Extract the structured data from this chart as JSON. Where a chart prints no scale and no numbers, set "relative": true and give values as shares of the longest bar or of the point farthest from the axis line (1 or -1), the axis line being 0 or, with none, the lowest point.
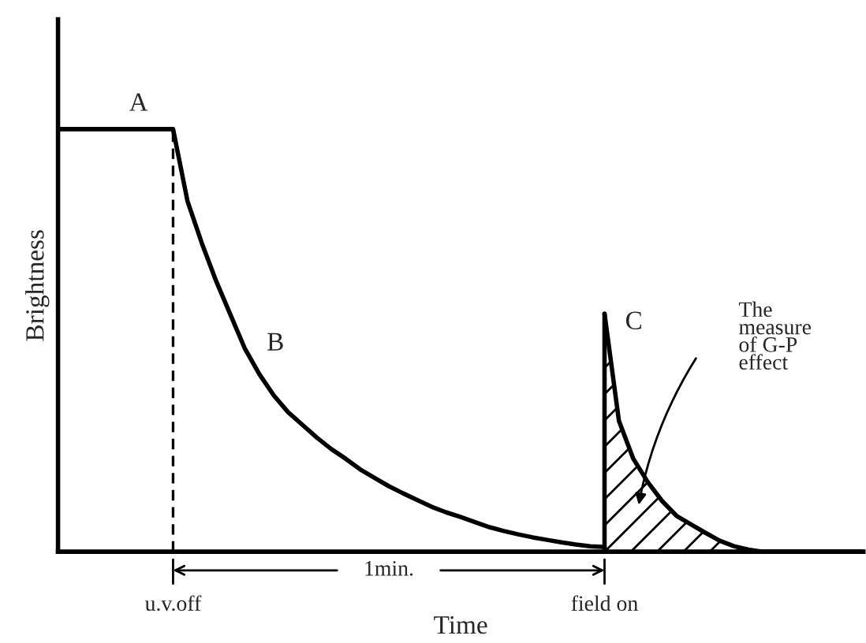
{
  "chart_data": {
    "type": "line",
    "relative": true,
    "xlabel": "Time",
    "ylabel": "Brightness",
    "categories": [
      null,
      null,
      null,
      null,
      null,
      null,
      null,
      null,
      "u.v.off",
      null,
      null,
      null,
      null,
      null,
      null,
      null,
      null,
      null,
      null,
      null,
      null,
      null,
      null,
      null,
      null,
      null,
      null,
      null,
      null,
      null,
      null,
      null,
      null,
      null,
      null,
      null,
      null,
      null,
      "field on",
      null,
      null,
      null,
      null,
      null,
      null,
      null,
      null,
      null,
      null,
      null,
      null,
      null,
      null,
      null,
      null,
      null,
      null
    ],
    "series": [
      {
        "color": "#000000",
        "values": [
          1,
          1,
          1,
          1,
          1,
          1,
          1,
          1,
          1,
          0.83,
          0.73,
          0.64,
          0.56,
          0.48,
          0.42,
          0.37,
          0.33,
          0.3,
          0.27,
          0.243,
          0.22,
          0.195,
          0.175,
          0.155,
          0.138,
          0.122,
          0.106,
          0.093,
          0.082,
          0.07,
          0.058,
          0.049,
          0.041,
          0.034,
          0.028,
          0.022,
          0.017,
          0.013,
          0.011,
          null,
          null,
          null,
          null,
          null,
          null,
          null,
          null,
          null,
          null,
          null,
          null,
          null,
          null,
          null,
          null,
          null,
          null
        ]
      },
      {
        "type": "area",
        "color": "#000000",
        "values": [
          null,
          null,
          null,
          null,
          null,
          null,
          null,
          null,
          null,
          null,
          null,
          null,
          null,
          null,
          null,
          null,
          null,
          null,
          null,
          null,
          null,
          null,
          null,
          null,
          null,
          null,
          null,
          null,
          null,
          null,
          null,
          null,
          null,
          null,
          null,
          null,
          null,
          null,
          0.563,
          0.31,
          0.22,
          0.165,
          0.12,
          0.085,
          0.065,
          0.045,
          0.026,
          0.013,
          0.005,
          0,
          0,
          0,
          0,
          0,
          0,
          0,
          0
        ]
      }
    ],
    "ref_lines": [
      {
        "axis": "x",
        "value": "u.v.off",
        "line_style": "dashed",
        "color": "#000000"
      },
      {
        "axis": "x",
        "value": "field on",
        "line_style": "solid",
        "color": "#000000"
      }
    ],
    "annotations": [
      "A",
      "B",
      "C",
      "The\nmeasure\nof G-P\neffect",
      "1min."
    ]
  }
}
